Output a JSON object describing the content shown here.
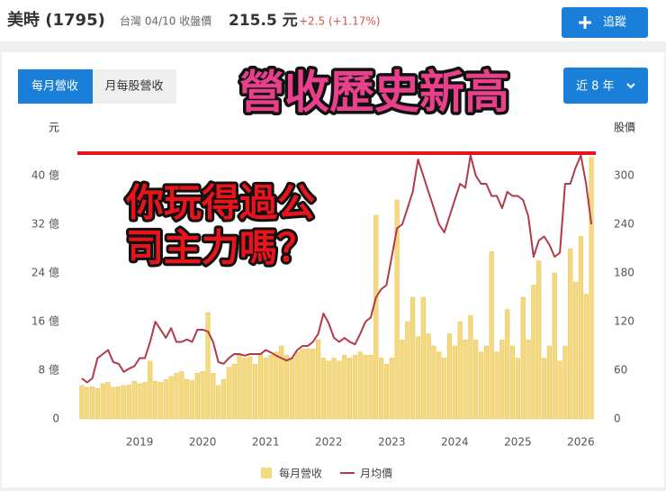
{
  "header": {
    "name": "美時 (1795)",
    "market": "台灣 04/10 收盤價",
    "price": "215.5 元",
    "change": "+2.5 (+1.17%)",
    "follow": "追蹤"
  },
  "tabs": [
    "每月營收",
    "月每股營收"
  ],
  "range": "近 8 年",
  "annotations": {
    "headline": "營收歷史新高",
    "question": [
      "你玩得過公",
      "司主力嗎？"
    ]
  },
  "chart_data": {
    "type": "combo",
    "y_label": "元",
    "y2_label": "股價",
    "categories": [
      null,
      null,
      null,
      null,
      null,
      null,
      null,
      null,
      null,
      null,
      null,
      "2019",
      null,
      null,
      null,
      null,
      null,
      null,
      null,
      null,
      null,
      null,
      null,
      "2020",
      null,
      null,
      null,
      null,
      null,
      null,
      null,
      null,
      null,
      null,
      null,
      "2021",
      null,
      null,
      null,
      null,
      null,
      null,
      null,
      null,
      null,
      null,
      null,
      "2022",
      null,
      null,
      null,
      null,
      null,
      null,
      null,
      null,
      null,
      null,
      null,
      "2023",
      null,
      null,
      null,
      null,
      null,
      null,
      null,
      null,
      null,
      null,
      null,
      "2024",
      null,
      null,
      null,
      null,
      null,
      null,
      null,
      null,
      null,
      null,
      null,
      "2025",
      null,
      null,
      null,
      null,
      null,
      null,
      null,
      null,
      null,
      null,
      null,
      "2026",
      null,
      null
    ],
    "series": [
      {
        "name": "每月營收",
        "type": "bar",
        "color": "#f5d97e",
        "values": [
          5.5,
          5.2,
          5.3,
          5.0,
          5.8,
          6.0,
          5.2,
          5.3,
          5.5,
          5.6,
          6.2,
          5.8,
          6.0,
          9.5,
          6.2,
          6.0,
          6.5,
          7.0,
          7.5,
          7.8,
          6.5,
          6.3,
          7.5,
          7.8,
          17.5,
          7.5,
          5.5,
          6.5,
          8.5,
          9.0,
          10.5,
          10.0,
          10.2,
          9.0,
          10.8,
          10.0,
          10.5,
          11.0,
          12.0,
          10.5,
          10.0,
          11.0,
          11.5,
          11.5,
          11.5,
          13.0,
          10.0,
          9.5,
          10.0,
          9.5,
          10.5,
          10.0,
          10.5,
          11.0,
          10.5,
          10.5,
          33.5,
          10.0,
          9.0,
          10.0,
          36.0,
          13.0,
          16.0,
          20.0,
          13.5,
          20.0,
          14.0,
          12.0,
          11.0,
          10.0,
          14.0,
          12.0,
          16.0,
          13.0,
          17.0,
          13.0,
          11.0,
          12.0,
          27.5,
          11.0,
          13.0,
          18.0,
          12.0,
          10.0,
          20.0,
          13.0,
          22.0,
          26.0,
          10.0,
          12.0,
          24.0,
          9.5,
          12.0,
          28.0,
          22.5,
          30.0,
          20.5,
          43.0
        ]
      },
      {
        "name": "月均價",
        "type": "line",
        "axis": "y2",
        "color": "#b03a48",
        "values": [
          50,
          45,
          50,
          75,
          80,
          85,
          70,
          68,
          58,
          62,
          65,
          75,
          75,
          95,
          120,
          110,
          100,
          112,
          95,
          95,
          98,
          95,
          110,
          110,
          108,
          95,
          70,
          68,
          75,
          80,
          80,
          78,
          80,
          80,
          80,
          85,
          82,
          78,
          75,
          72,
          75,
          85,
          90,
          90,
          95,
          105,
          130,
          118,
          100,
          95,
          100,
          95,
          92,
          105,
          120,
          125,
          150,
          160,
          165,
          200,
          235,
          240,
          260,
          280,
          320,
          300,
          280,
          260,
          240,
          230,
          250,
          270,
          290,
          285,
          325,
          300,
          290,
          290,
          275,
          275,
          260,
          280,
          275,
          275,
          270,
          250,
          200,
          220,
          225,
          215,
          200,
          205,
          290,
          290,
          310,
          325,
          290,
          240
        ]
      }
    ],
    "ylim": [
      0,
      44
    ],
    "yticks": [
      0,
      {
        "value": 8,
        "label": "8 億"
      },
      {
        "value": 16,
        "label": "16 億"
      },
      {
        "value": 24,
        "label": "24 億"
      },
      {
        "value": 32,
        "label": "32 億"
      },
      {
        "value": 40,
        "label": "40 億"
      }
    ],
    "y2lim": [
      0,
      330
    ],
    "y2ticks": [
      0,
      60,
      120,
      180,
      240,
      300
    ],
    "grid": false,
    "legend": "bottom"
  }
}
